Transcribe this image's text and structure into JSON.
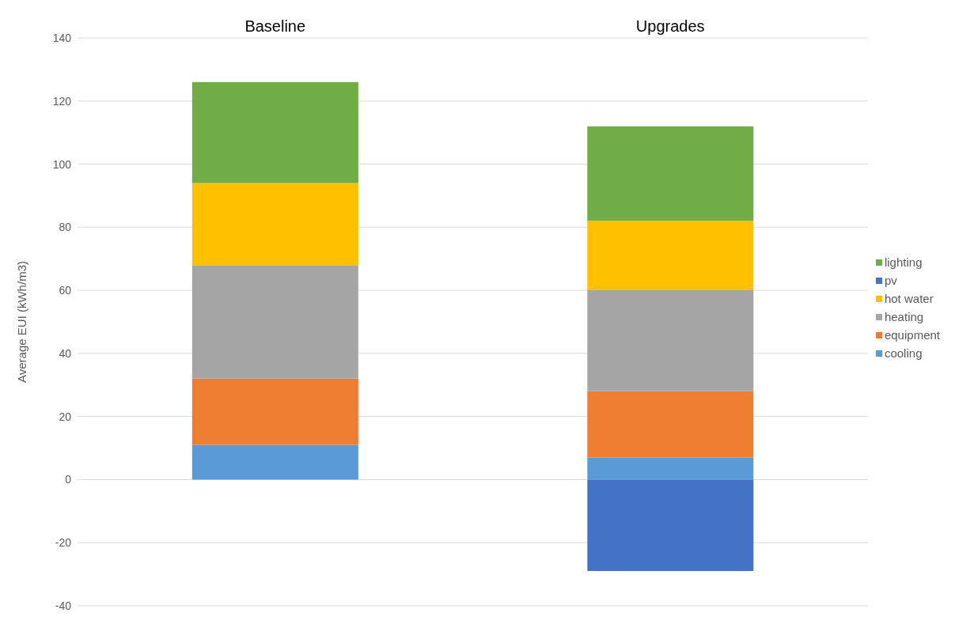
{
  "chart_data": {
    "type": "bar",
    "stacked": true,
    "ylabel": "Average EUI (kWh/m3)",
    "categories": [
      "Baseline",
      "Upgrades"
    ],
    "series": [
      {
        "name": "cooling",
        "color": "#5b9bd5",
        "values": [
          11,
          7
        ]
      },
      {
        "name": "equipment",
        "color": "#ed7d31",
        "values": [
          21,
          21
        ]
      },
      {
        "name": "heating",
        "color": "#a5a5a5",
        "values": [
          36,
          32
        ]
      },
      {
        "name": "hot water",
        "color": "#ffc000",
        "values": [
          26,
          22
        ]
      },
      {
        "name": "pv",
        "color": "#4472c4",
        "values": [
          0,
          -29
        ]
      },
      {
        "name": "lighting",
        "color": "#70ad47",
        "values": [
          32,
          30
        ]
      }
    ],
    "ylim": [
      -40,
      140
    ],
    "yticks": [
      -40,
      -20,
      0,
      20,
      40,
      60,
      80,
      100,
      120,
      140
    ],
    "grid": "y",
    "legend": "right"
  }
}
